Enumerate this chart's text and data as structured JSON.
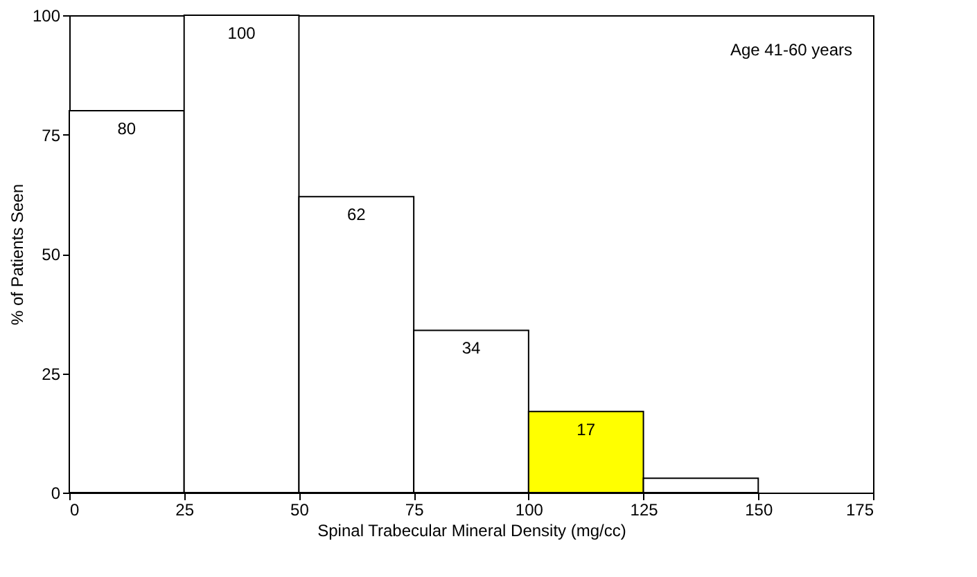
{
  "chart_data": {
    "type": "histogram",
    "xlabel": "Spinal Trabecular Mineral Density (mg/cc)",
    "ylabel": "% of Patients Seen",
    "bins": [
      0,
      25,
      50,
      75,
      100,
      125,
      150
    ],
    "values": [
      80,
      100,
      62,
      34,
      17,
      3
    ],
    "colors": [
      "#ffffff",
      "#ffffff",
      "#ffffff",
      "#ffffff",
      "#ffff00",
      "#ffffff"
    ],
    "value_labels": [
      "80",
      "100",
      "62",
      "34",
      "17",
      null
    ],
    "xlim": [
      0,
      175
    ],
    "xticks": [
      0,
      25,
      50,
      75,
      100,
      125,
      150,
      175
    ],
    "ylim": [
      0,
      100
    ],
    "yticks": [
      0,
      25,
      50,
      75,
      100
    ],
    "annotations": [
      "Age 41-60 years"
    ],
    "grid": false
  }
}
